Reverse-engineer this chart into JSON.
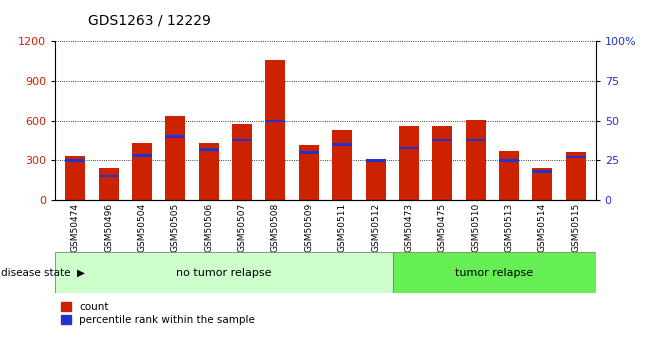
{
  "title": "GDS1263 / 12229",
  "samples": [
    "GSM50474",
    "GSM50496",
    "GSM50504",
    "GSM50505",
    "GSM50506",
    "GSM50507",
    "GSM50508",
    "GSM50509",
    "GSM50511",
    "GSM50512",
    "GSM50473",
    "GSM50475",
    "GSM50510",
    "GSM50513",
    "GSM50514",
    "GSM50515"
  ],
  "count_values": [
    330,
    245,
    430,
    635,
    430,
    575,
    1060,
    420,
    530,
    290,
    560,
    560,
    605,
    370,
    245,
    360
  ],
  "percentile_values": [
    25,
    15,
    28,
    40,
    32,
    38,
    50,
    30,
    35,
    25,
    33,
    38,
    38,
    25,
    18,
    27
  ],
  "group1_label": "no tumor relapse",
  "group2_label": "tumor relapse",
  "group1_count": 10,
  "group2_count": 6,
  "bar_color_red": "#cc2200",
  "bar_color_blue": "#2233cc",
  "ylim_left": [
    0,
    1200
  ],
  "ylim_right": [
    0,
    100
  ],
  "yticks_left": [
    0,
    300,
    600,
    900,
    1200
  ],
  "yticks_right": [
    0,
    25,
    50,
    75,
    100
  ],
  "legend_count": "count",
  "legend_percentile": "percentile rank within the sample",
  "group_label_prefix": "disease state",
  "bg_gray": "#d0d0d0",
  "bg_green1": "#ccffcc",
  "bg_green2": "#66ee55"
}
